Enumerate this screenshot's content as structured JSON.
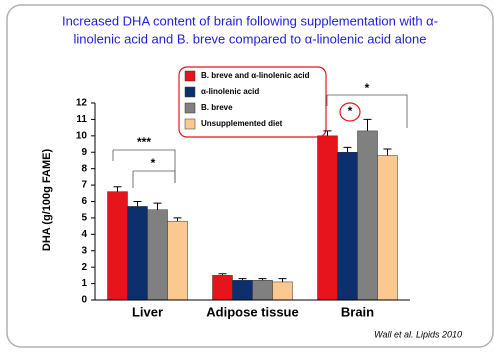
{
  "chart_data": {
    "type": "bar",
    "title": [
      "Increased DHA content of brain following supplementation with α-",
      "linolenic acid and B. breve compared to α-linolenic acid alone"
    ],
    "y_label": "DHA (g/100g FAME)",
    "categories": [
      "Liver",
      "Adipose tissue",
      "Brain"
    ],
    "series": [
      {
        "name": "B. breve and α-linolenic acid",
        "color": "#e8141b",
        "values": [
          6.6,
          1.5,
          10.0
        ],
        "errors": [
          0.3,
          0.1,
          0.3
        ]
      },
      {
        "name": "α-linolenic acid",
        "color": "#0d2f6e",
        "values": [
          5.7,
          1.2,
          9.0
        ],
        "errors": [
          0.3,
          0.1,
          0.3
        ]
      },
      {
        "name": "B. breve",
        "color": "#808080",
        "values": [
          5.5,
          1.2,
          10.3
        ],
        "errors": [
          0.4,
          0.1,
          0.7
        ]
      },
      {
        "name": "Unsupplemented diet",
        "color": "#fbc98f",
        "values": [
          4.8,
          1.1,
          8.8
        ],
        "errors": [
          0.2,
          0.2,
          0.4
        ]
      }
    ],
    "ylim": [
      0,
      12
    ],
    "yticks": [
      0,
      1,
      2,
      3,
      4,
      5,
      6,
      7,
      8,
      9,
      10,
      11,
      12
    ],
    "annotations": [
      "***",
      "*",
      "*",
      "*"
    ],
    "source": "Wall et al. Lipids 2010"
  }
}
